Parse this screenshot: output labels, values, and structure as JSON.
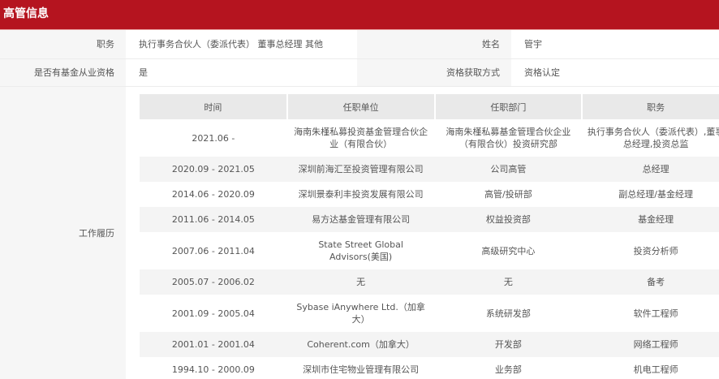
{
  "title": "高管信息",
  "info": {
    "position_label": "职务",
    "position_value": "执行事务合伙人（委派代表） 董事总经理 其他",
    "name_label": "姓名",
    "name_value": "管宇",
    "qual_label": "是否有基金从业资格",
    "qual_value": "是",
    "method_label": "资格获取方式",
    "method_value": "资格认定"
  },
  "work": {
    "label": "工作履历",
    "headers": [
      "时间",
      "任职单位",
      "任职部门",
      "职务"
    ],
    "rows": [
      [
        "2021.06 -",
        "海南朱槿私募投资基金管理合伙企业（有限合伙）",
        "海南朱槿私募基金管理合伙企业（有限合伙）投资研究部",
        "执行事务合伙人（委派代表）,董事总经理,投资总监"
      ],
      [
        "2020.09 - 2021.05",
        "深圳前海汇至投资管理有限公司",
        "公司高管",
        "总经理"
      ],
      [
        "2014.06 - 2020.09",
        "深圳景泰利丰投资发展有限公司",
        "高管/投研部",
        "副总经理/基金经理"
      ],
      [
        "2011.06 - 2014.05",
        "易方达基金管理有限公司",
        "权益投资部",
        "基金经理"
      ],
      [
        "2007.06 - 2011.04",
        "State Street Global Advisors(美国)",
        "高级研究中心",
        "投资分析师"
      ],
      [
        "2005.07 - 2006.02",
        "无",
        "无",
        "备考"
      ],
      [
        "2001.09 - 2005.04",
        "Sybase iAnywhere Ltd.（加拿大）",
        "系统研发部",
        "软件工程师"
      ],
      [
        "2001.01 - 2001.04",
        "Coherent.com（加拿大）",
        "开发部",
        "网络工程师"
      ],
      [
        "1994.10 - 2000.09",
        "深圳市住宅物业管理有限公司",
        "业务部",
        "机电工程师"
      ]
    ]
  }
}
